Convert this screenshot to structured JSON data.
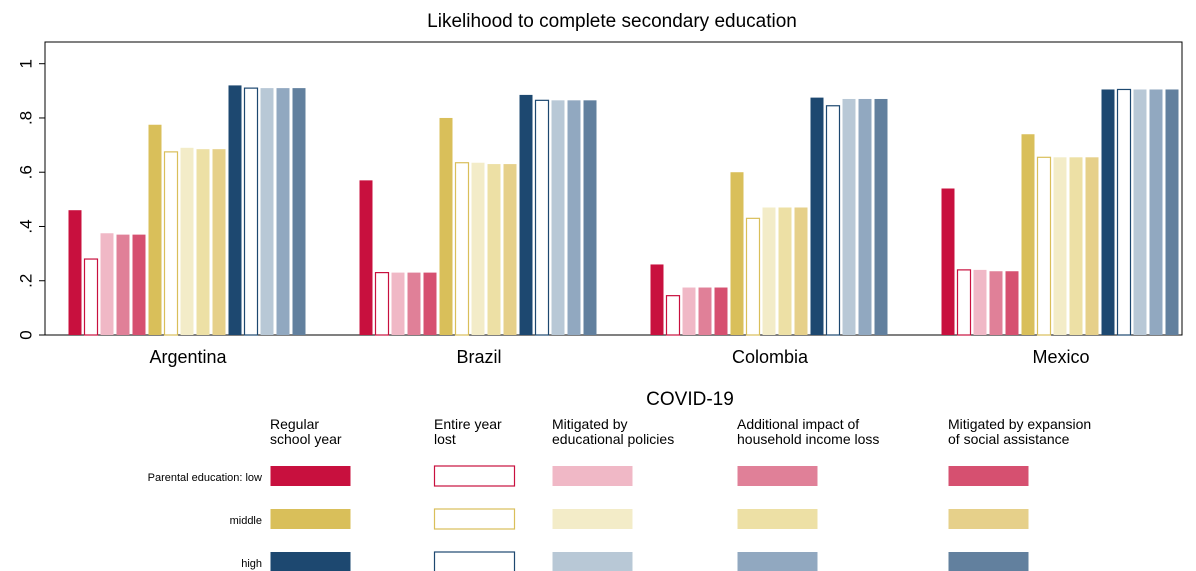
{
  "chart_data": {
    "type": "bar",
    "title": "Likelihood to complete secondary education",
    "categories": [
      "Argentina",
      "Brazil",
      "Colombia",
      "Mexico"
    ],
    "ylim": [
      0,
      1.08
    ],
    "yticks": [
      0,
      {
        "value": 0.2,
        "label": ".2"
      },
      {
        "value": 0.4,
        "label": ".4"
      },
      {
        "value": 0.6,
        "label": ".6"
      },
      {
        "value": 0.8,
        "label": ".8"
      },
      1
    ],
    "legend_title": "COVID-19",
    "scenarios": [
      [
        "Regular",
        "school year"
      ],
      [
        "Entire year",
        "lost"
      ],
      [
        "Mitigated by",
        "educational policies"
      ],
      [
        "Additional impact of",
        "household income loss"
      ],
      [
        "Mitigated by expansion",
        "of social assistance"
      ]
    ],
    "scenario_styles": [
      "solid",
      "outline",
      "solid",
      "solid",
      "solid"
    ],
    "series": [
      {
        "name": "Parental education: low",
        "colors": [
          "#c8103e",
          "#c8103e",
          "#f0b8c6",
          "#e08098",
          "#d65070"
        ],
        "values": [
          [
            0.46,
            0.57,
            0.26,
            0.54
          ],
          [
            0.28,
            0.23,
            0.145,
            0.24
          ],
          [
            0.375,
            0.23,
            0.175,
            0.24
          ],
          [
            0.37,
            0.23,
            0.175,
            0.235
          ],
          [
            0.37,
            0.23,
            0.175,
            0.235
          ]
        ]
      },
      {
        "name": "middle",
        "colors": [
          "#d9bf5a",
          "#d9bf5a",
          "#f3ecc8",
          "#ede0a5",
          "#e6d08a"
        ],
        "values": [
          [
            0.775,
            0.8,
            0.6,
            0.74
          ],
          [
            0.675,
            0.635,
            0.43,
            0.655
          ],
          [
            0.69,
            0.635,
            0.47,
            0.655
          ],
          [
            0.685,
            0.63,
            0.47,
            0.655
          ],
          [
            0.685,
            0.63,
            0.47,
            0.655
          ]
        ]
      },
      {
        "name": "high",
        "colors": [
          "#1d4870",
          "#1d4870",
          "#b8c8d6",
          "#91a8c0",
          "#62809e"
        ],
        "values": [
          [
            0.92,
            0.885,
            0.875,
            0.905
          ],
          [
            0.91,
            0.865,
            0.845,
            0.905
          ],
          [
            0.91,
            0.865,
            0.87,
            0.905
          ],
          [
            0.91,
            0.865,
            0.87,
            0.905
          ],
          [
            0.91,
            0.865,
            0.87,
            0.905
          ]
        ]
      }
    ]
  }
}
